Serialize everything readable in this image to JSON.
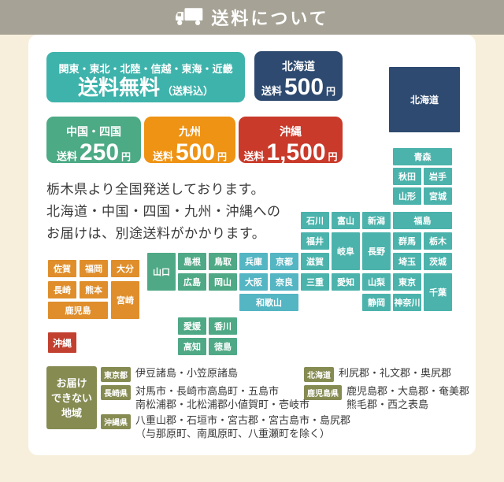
{
  "header": {
    "title": "送料について"
  },
  "price_boxes": {
    "free": {
      "regions": "関東・東北・北陸・信越・東海・近畿",
      "label": "送料無料",
      "note": "（送料込）"
    },
    "hokkaido": {
      "region": "北海道",
      "prefix": "送料",
      "amount": "500",
      "suffix": "円"
    },
    "chugoku_shikoku": {
      "region": "中国・四国",
      "prefix": "送料",
      "amount": "250",
      "suffix": "円"
    },
    "kyushu": {
      "region": "九州",
      "prefix": "送料",
      "amount": "500",
      "suffix": "円"
    },
    "okinawa": {
      "region": "沖縄",
      "prefix": "送料",
      "amount": "1,500",
      "suffix": "円"
    }
  },
  "notice_lines": [
    "栃木県より全国発送しております。",
    "北海道・中国・四国・九州・沖縄への",
    "お届けは、別途送料がかかります。"
  ],
  "colors": {
    "header_bg": "#a6a295",
    "page_bg": "#f7efdc",
    "teal": "#4bb3ac",
    "kinki_blue": "#54b5c3",
    "green": "#4fa986",
    "orange": "#df8e2b",
    "red": "#c2402f",
    "navy": "#2e4a70",
    "olive": "#868b52"
  },
  "map": {
    "hokkaido": "北海道",
    "okinawa_island": "沖縄",
    "main": [
      {
        "n": "青森",
        "r": 1,
        "c": 9,
        "cs": 2,
        "g": "teal"
      },
      {
        "n": "秋田",
        "r": 2,
        "c": 9,
        "g": "teal"
      },
      {
        "n": "岩手",
        "r": 2,
        "c": 10,
        "g": "teal"
      },
      {
        "n": "山形",
        "r": 3,
        "c": 9,
        "g": "teal"
      },
      {
        "n": "宮城",
        "r": 3,
        "c": 10,
        "g": "teal"
      },
      {
        "n": "石川",
        "r": 4,
        "c": 6,
        "g": "teal"
      },
      {
        "n": "富山",
        "r": 4,
        "c": 7,
        "g": "teal"
      },
      {
        "n": "新潟",
        "r": 4,
        "c": 8,
        "g": "teal"
      },
      {
        "n": "福島",
        "r": 4,
        "c": 9,
        "cs": 2,
        "g": "teal"
      },
      {
        "n": "福井",
        "r": 5,
        "c": 6,
        "g": "teal"
      },
      {
        "n": "岐阜",
        "r": 5,
        "c": 7,
        "rs": 2,
        "g": "teal"
      },
      {
        "n": "長野",
        "r": 5,
        "c": 8,
        "rs": 2,
        "g": "teal"
      },
      {
        "n": "群馬",
        "r": 5,
        "c": 9,
        "g": "teal"
      },
      {
        "n": "栃木",
        "r": 5,
        "c": 10,
        "g": "teal"
      },
      {
        "n": "山口",
        "r": 6,
        "c": 1,
        "rs": 2,
        "g": "green"
      },
      {
        "n": "島根",
        "r": 6,
        "c": 2,
        "g": "green"
      },
      {
        "n": "鳥取",
        "r": 6,
        "c": 3,
        "g": "green"
      },
      {
        "n": "兵庫",
        "r": 6,
        "c": 4,
        "g": "kinki"
      },
      {
        "n": "京都",
        "r": 6,
        "c": 5,
        "g": "kinki"
      },
      {
        "n": "滋賀",
        "r": 6,
        "c": 6,
        "g": "teal"
      },
      {
        "n": "埼玉",
        "r": 6,
        "c": 9,
        "g": "teal"
      },
      {
        "n": "茨城",
        "r": 6,
        "c": 10,
        "g": "teal"
      },
      {
        "n": "広島",
        "r": 7,
        "c": 2,
        "g": "green"
      },
      {
        "n": "岡山",
        "r": 7,
        "c": 3,
        "g": "green"
      },
      {
        "n": "大阪",
        "r": 7,
        "c": 4,
        "g": "kinki"
      },
      {
        "n": "奈良",
        "r": 7,
        "c": 5,
        "g": "kinki"
      },
      {
        "n": "三重",
        "r": 7,
        "c": 6,
        "g": "teal"
      },
      {
        "n": "愛知",
        "r": 7,
        "c": 7,
        "g": "teal"
      },
      {
        "n": "山梨",
        "r": 7,
        "c": 8,
        "g": "teal"
      },
      {
        "n": "東京",
        "r": 7,
        "c": 9,
        "g": "teal"
      },
      {
        "n": "千葉",
        "r": 7,
        "c": 10,
        "rs": 2,
        "g": "teal"
      },
      {
        "n": "和歌山",
        "r": 8,
        "c": 4,
        "cs": 2,
        "g": "kinki"
      },
      {
        "n": "静岡",
        "r": 8,
        "c": 8,
        "g": "teal"
      },
      {
        "n": "神奈川",
        "r": 8,
        "c": 9,
        "g": "teal"
      },
      {
        "n": "愛媛",
        "r": 9,
        "c": 2,
        "g": "green"
      },
      {
        "n": "香川",
        "r": 9,
        "c": 3,
        "g": "green"
      },
      {
        "n": "高知",
        "r": 10,
        "c": 2,
        "g": "green"
      },
      {
        "n": "徳島",
        "r": 10,
        "c": 3,
        "g": "green"
      }
    ],
    "kyushu": [
      {
        "n": "佐賀",
        "r": 1,
        "c": 1,
        "g": "orange"
      },
      {
        "n": "福岡",
        "r": 1,
        "c": 2,
        "g": "orange"
      },
      {
        "n": "大分",
        "r": 1,
        "c": 3,
        "g": "orange"
      },
      {
        "n": "長崎",
        "r": 2,
        "c": 1,
        "g": "orange"
      },
      {
        "n": "熊本",
        "r": 2,
        "c": 2,
        "g": "orange"
      },
      {
        "n": "宮崎",
        "r": 2,
        "c": 3,
        "rs": 2,
        "g": "orange"
      },
      {
        "n": "鹿児島",
        "r": 3,
        "c": 1,
        "cs": 2,
        "g": "orange"
      }
    ]
  },
  "undeliverable": {
    "heading_lines": [
      "お届け",
      "できない",
      "地域"
    ],
    "columns": [
      {
        "entries": [
          {
            "label": "東京都",
            "lines": [
              "伊豆諸島・小笠原諸島"
            ]
          },
          {
            "label": "長崎県",
            "lines": [
              "対馬市・長崎市高島町・五島市",
              "南松浦郡・北松浦郡小値賀町・壱岐市"
            ]
          },
          {
            "label": "沖縄県",
            "lines": [
              "八重山郡・石垣市・宮古郡・宮古島市・島尻郡",
              "（与那原町、南風原町、八重瀬町を除く）"
            ]
          }
        ]
      },
      {
        "entries": [
          {
            "label": "北海道",
            "lines": [
              "利尻郡・礼文郡・奥尻郡"
            ]
          },
          {
            "label": "鹿児島県",
            "lines": [
              "鹿児島郡・大島郡・奄美郡",
              "熊毛郡・西之表島"
            ]
          }
        ]
      }
    ]
  }
}
